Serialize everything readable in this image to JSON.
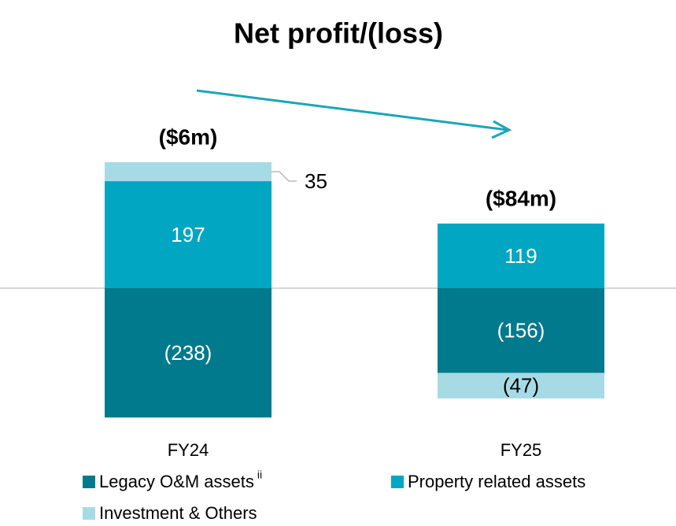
{
  "chart_data": {
    "type": "stacked_bar",
    "title": "Net profit/(loss)",
    "categories": [
      "FY24",
      "FY25"
    ],
    "series": [
      {
        "name": "Legacy O&M assets",
        "footnote": "ii",
        "color": "#007a8c",
        "values": [
          -238,
          -156
        ],
        "value_labels": [
          "(238)",
          "(156)"
        ]
      },
      {
        "name": "Property related assets",
        "color": "#00a6c2",
        "values": [
          197,
          119
        ]
      },
      {
        "name": "Investment & Others",
        "color": "#a6dbe5",
        "values": [
          35,
          -47
        ],
        "value_labels": [
          "35",
          "(47)"
        ]
      }
    ],
    "totals": {
      "values": [
        -6,
        -84
      ],
      "value_labels": [
        "($6m)",
        "($84m)"
      ]
    },
    "ylim": [
      -300,
      300
    ]
  }
}
